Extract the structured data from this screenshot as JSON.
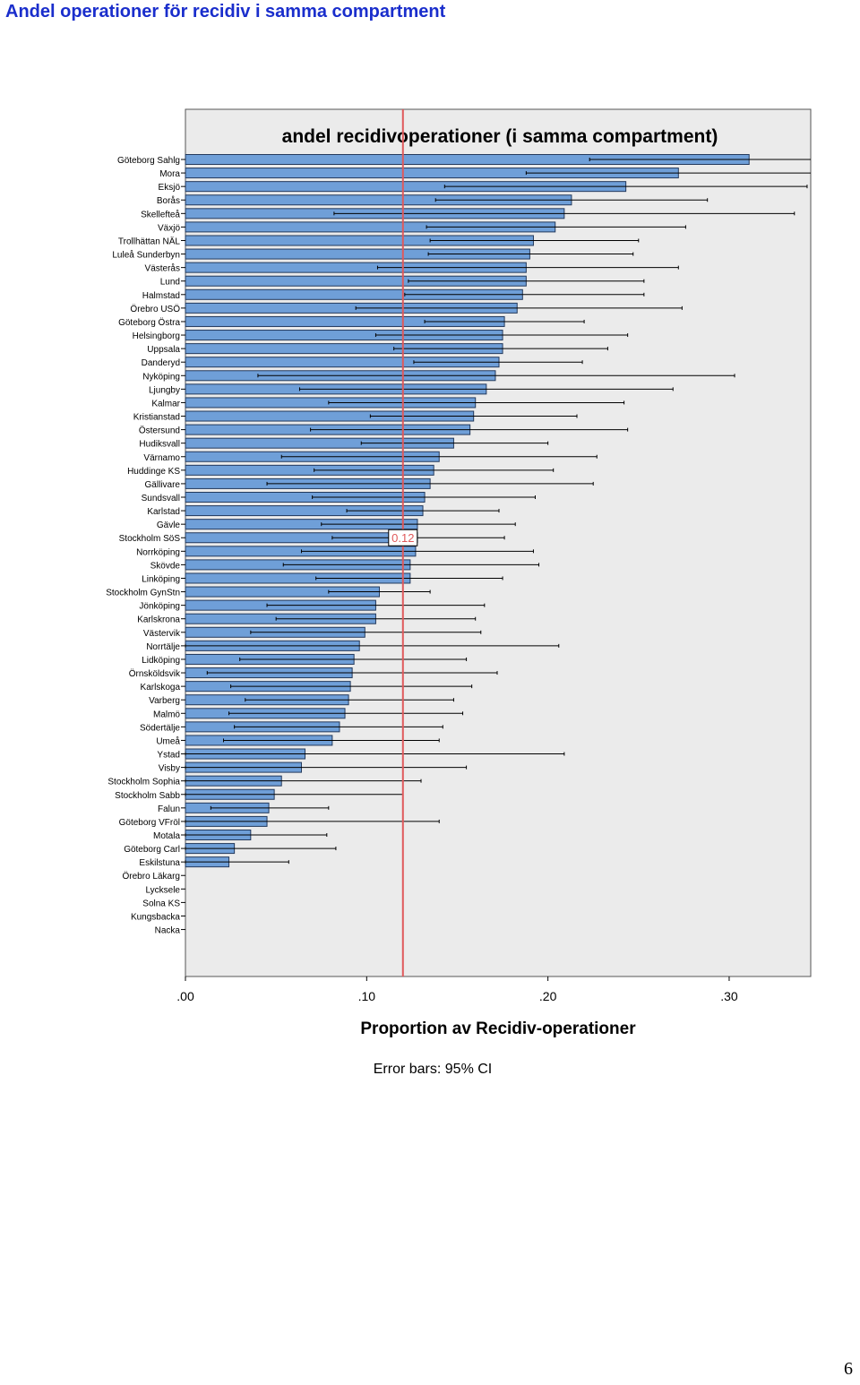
{
  "page": {
    "title": "Andel operationer för recidiv i samma compartment",
    "page_number": "6"
  },
  "colors": {
    "title": "#1a2ecc",
    "plot_background": "#ebebeb",
    "bar_fill": "#6f9fd8",
    "bar_stroke": "#23395c",
    "reference_line": "#e0595b"
  },
  "chart_data": {
    "type": "bar",
    "orientation": "horizontal",
    "title": "andel  recidivoperationer (i samma compartment)",
    "xlabel": "Proportion av Recidiv-operationer",
    "ylabel": "",
    "note": "Error bars: 95% CI",
    "xlim": [
      0,
      0.345
    ],
    "xticks": [
      0,
      0.1,
      0.2,
      0.3
    ],
    "xtick_labels": [
      ".00",
      ".10",
      ".20",
      ".30"
    ],
    "reference_line": {
      "value": 0.12,
      "label": "0.12"
    },
    "categories": [
      "Göteborg Sahlg",
      "Mora",
      "Eksjö",
      "Borås",
      "Skellefteå",
      "Växjö",
      "Trollhättan NÄL",
      "Luleå Sunderbyn",
      "Västerås",
      "Lund",
      "Halmstad",
      "Örebro USÖ",
      "Göteborg Östra",
      "Helsingborg",
      "Uppsala",
      "Danderyd",
      "Nyköping",
      "Ljungby",
      "Kalmar",
      "Kristianstad",
      "Östersund",
      "Hudiksvall",
      "Värnamo",
      "Huddinge KS",
      "Gällivare",
      "Sundsvall",
      "Karlstad",
      "Gävle",
      "Stockholm SöS",
      "Norrköping",
      "Skövde",
      "Linköping",
      "Stockholm GynStn",
      "Jönköping",
      "Karlskrona",
      "Västervik",
      "Norrtälje",
      "Lidköping",
      "Örnsköldsvik",
      "Karlskoga",
      "Varberg",
      "Malmö",
      "Södertälje",
      "Umeå",
      "Ystad",
      "Visby",
      "Stockholm Sophia",
      "Stockholm Sabb",
      "Falun",
      "Göteborg VFröl",
      "Motala",
      "Göteborg Carl",
      "Eskilstuna",
      "Örebro Läkarg",
      "Lycksele",
      "Solna KS",
      "Kungsbacka",
      "Nacka"
    ],
    "values": [
      0.311,
      0.272,
      0.243,
      0.213,
      0.209,
      0.204,
      0.192,
      0.19,
      0.188,
      0.188,
      0.186,
      0.183,
      0.176,
      0.175,
      0.175,
      0.173,
      0.171,
      0.166,
      0.16,
      0.159,
      0.157,
      0.148,
      0.14,
      0.137,
      0.135,
      0.132,
      0.131,
      0.128,
      0.128,
      0.127,
      0.124,
      0.124,
      0.107,
      0.105,
      0.105,
      0.099,
      0.096,
      0.093,
      0.092,
      0.091,
      0.09,
      0.088,
      0.085,
      0.081,
      0.066,
      0.064,
      0.053,
      0.049,
      0.046,
      0.045,
      0.036,
      0.027,
      0.024,
      0.0,
      0.0,
      0.0,
      0.0,
      0.0
    ],
    "ci_low": [
      0.223,
      0.188,
      0.143,
      0.138,
      0.082,
      0.133,
      0.135,
      0.134,
      0.106,
      0.123,
      0.121,
      0.094,
      0.132,
      0.105,
      0.115,
      0.126,
      0.04,
      0.063,
      0.079,
      0.102,
      0.069,
      0.097,
      0.053,
      0.071,
      0.045,
      0.07,
      0.089,
      0.075,
      0.081,
      0.064,
      0.054,
      0.072,
      0.079,
      0.045,
      0.05,
      0.036,
      0.0,
      0.03,
      0.012,
      0.025,
      0.033,
      0.024,
      0.027,
      0.021,
      0.0,
      0.0,
      0.0,
      0.0,
      0.014,
      0.0,
      0.0,
      0.0,
      0.0,
      0.0,
      0.0,
      0.0,
      0.0,
      0.0
    ],
    "ci_high": [
      0.345,
      0.345,
      0.343,
      0.288,
      0.336,
      0.276,
      0.25,
      0.247,
      0.272,
      0.253,
      0.253,
      0.274,
      0.22,
      0.244,
      0.233,
      0.219,
      0.303,
      0.269,
      0.242,
      0.216,
      0.244,
      0.2,
      0.227,
      0.203,
      0.225,
      0.193,
      0.173,
      0.182,
      0.176,
      0.192,
      0.195,
      0.175,
      0.135,
      0.165,
      0.16,
      0.163,
      0.206,
      0.155,
      0.172,
      0.158,
      0.148,
      0.153,
      0.142,
      0.14,
      0.209,
      0.155,
      0.13,
      0.12,
      0.079,
      0.14,
      0.078,
      0.083,
      0.057,
      0.0,
      0.0,
      0.0,
      0.0,
      0.0
    ],
    "grid": false,
    "legend": "none"
  }
}
